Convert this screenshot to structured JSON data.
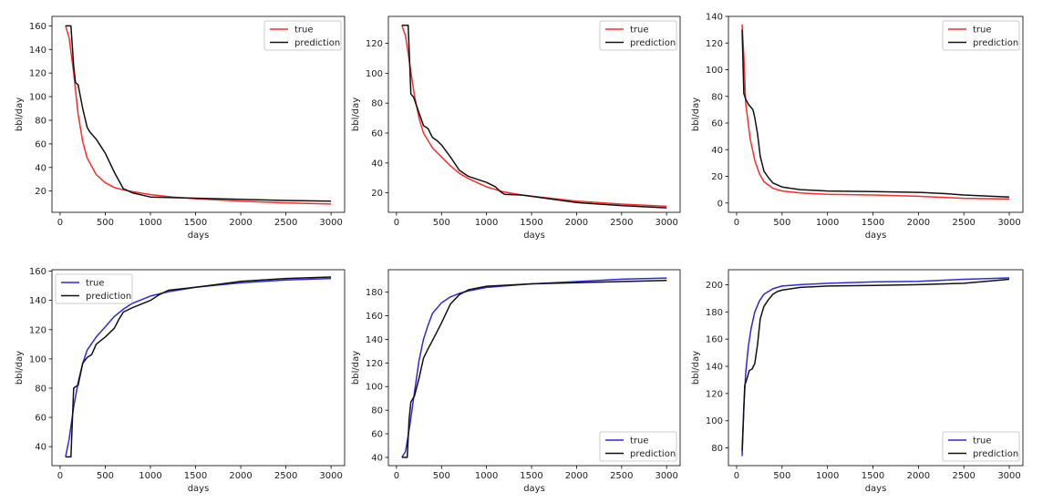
{
  "colors": {
    "true_top": "#ff2b2b",
    "true_bottom": "#2b2bdc",
    "prediction": "#111111"
  },
  "chart_data": [
    {
      "type": "line",
      "xlabel": "days",
      "ylabel": "bbl/day",
      "legend": "top-right",
      "xlim": [
        -90,
        3150
      ],
      "ylim": [
        2,
        168
      ],
      "xticks": [
        0,
        500,
        1000,
        1500,
        2000,
        2500,
        3000
      ],
      "yticks": [
        20,
        40,
        60,
        80,
        100,
        120,
        140,
        160
      ],
      "series": [
        {
          "name": "true",
          "color_key": "true_top",
          "x": [
            60,
            100,
            150,
            200,
            250,
            300,
            400,
            500,
            600,
            700,
            800,
            1000,
            1250,
            1500,
            2000,
            2500,
            3000
          ],
          "y": [
            160,
            150,
            120,
            85,
            62,
            48,
            34,
            27,
            23,
            21,
            19.5,
            17,
            15,
            13.5,
            11.5,
            10,
            9
          ]
        },
        {
          "name": "prediction",
          "color_key": "prediction",
          "x": [
            60,
            120,
            150,
            170,
            200,
            250,
            300,
            330,
            400,
            500,
            600,
            700,
            800,
            1000,
            1500,
            2000,
            2500,
            3000
          ],
          "y": [
            160,
            160,
            126,
            112,
            110,
            90,
            74,
            70,
            64,
            52,
            36,
            22,
            18.5,
            15,
            14,
            13,
            12,
            11.5
          ]
        }
      ]
    },
    {
      "type": "line",
      "xlabel": "days",
      "ylabel": "bbl/day",
      "legend": "top-right",
      "xlim": [
        -90,
        3150
      ],
      "ylim": [
        7,
        138
      ],
      "xticks": [
        0,
        500,
        1000,
        1500,
        2000,
        2500,
        3000
      ],
      "yticks": [
        20,
        40,
        60,
        80,
        100,
        120
      ],
      "series": [
        {
          "name": "true",
          "color_key": "true_top",
          "x": [
            60,
            100,
            150,
            200,
            250,
            300,
            400,
            500,
            600,
            700,
            800,
            1000,
            1200,
            1400,
            2000,
            2500,
            3000
          ],
          "y": [
            132,
            125,
            105,
            85,
            70,
            60,
            50,
            44,
            38,
            33,
            29.5,
            24,
            20.5,
            18.5,
            14.5,
            12.5,
            11
          ]
        },
        {
          "name": "prediction",
          "color_key": "prediction",
          "x": [
            60,
            130,
            160,
            190,
            230,
            300,
            350,
            400,
            450,
            500,
            600,
            700,
            800,
            1000,
            1100,
            1150,
            1200,
            1400,
            2000,
            2500,
            3000
          ],
          "y": [
            132,
            132,
            86,
            84,
            77,
            65,
            63,
            57,
            55,
            52,
            44,
            35,
            31,
            27,
            24,
            21,
            19,
            18.5,
            13.5,
            11.5,
            10
          ]
        }
      ]
    },
    {
      "type": "line",
      "xlabel": "days",
      "ylabel": "bbl/day",
      "legend": "top-right",
      "xlim": [
        -90,
        3150
      ],
      "ylim": [
        -7,
        140
      ],
      "xticks": [
        0,
        500,
        1000,
        1500,
        2000,
        2500,
        3000
      ],
      "yticks": [
        0,
        20,
        40,
        60,
        80,
        100,
        120,
        140
      ],
      "series": [
        {
          "name": "true",
          "color_key": "true_top",
          "x": [
            60,
            80,
            100,
            150,
            200,
            250,
            300,
            400,
            500,
            700,
            1000,
            1500,
            2000,
            2500,
            3000
          ],
          "y": [
            134,
            110,
            75,
            48,
            32,
            22,
            16,
            11,
            9,
            7.5,
            6.5,
            6,
            5,
            3.5,
            3
          ]
        },
        {
          "name": "prediction",
          "color_key": "prediction",
          "x": [
            60,
            80,
            100,
            130,
            180,
            200,
            230,
            260,
            300,
            350,
            400,
            500,
            700,
            1000,
            1500,
            2000,
            2300,
            2500,
            3000
          ],
          "y": [
            130,
            82,
            78,
            74,
            70,
            64,
            52,
            35,
            24,
            19,
            15,
            12,
            10,
            9,
            8.5,
            8,
            7,
            6,
            4.5
          ]
        }
      ]
    },
    {
      "type": "line",
      "xlabel": "days",
      "ylabel": "bbl/day",
      "legend": "top-left",
      "xlim": [
        -90,
        3150
      ],
      "ylim": [
        27,
        161
      ],
      "xticks": [
        0,
        500,
        1000,
        1500,
        2000,
        2500,
        3000
      ],
      "yticks": [
        40,
        60,
        80,
        100,
        120,
        140,
        160
      ],
      "series": [
        {
          "name": "true",
          "color_key": "true_bottom",
          "x": [
            60,
            100,
            150,
            200,
            250,
            300,
            400,
            500,
            600,
            700,
            800,
            1000,
            1200,
            1500,
            2000,
            2500,
            3000
          ],
          "y": [
            33,
            45,
            67,
            84,
            97,
            106,
            115,
            122,
            129,
            134,
            138,
            143,
            146,
            149,
            152,
            154,
            155
          ]
        },
        {
          "name": "prediction",
          "color_key": "prediction",
          "x": [
            60,
            120,
            150,
            170,
            200,
            250,
            300,
            350,
            400,
            500,
            600,
            650,
            700,
            800,
            1000,
            1100,
            1200,
            1500,
            2000,
            2500,
            3000
          ],
          "y": [
            33,
            33,
            80,
            81,
            82,
            97,
            101,
            103,
            110,
            115,
            121,
            127,
            132,
            135,
            140,
            144,
            147,
            149,
            153,
            155,
            156
          ]
        }
      ]
    },
    {
      "type": "line",
      "xlabel": "days",
      "ylabel": "bbl/day",
      "legend": "bottom-right",
      "xlim": [
        -90,
        3150
      ],
      "ylim": [
        33,
        199
      ],
      "xticks": [
        0,
        500,
        1000,
        1500,
        2000,
        2500,
        3000
      ],
      "yticks": [
        40,
        60,
        80,
        100,
        120,
        140,
        160,
        180
      ],
      "series": [
        {
          "name": "true",
          "color_key": "true_bottom",
          "x": [
            60,
            100,
            150,
            200,
            250,
            300,
            350,
            400,
            500,
            600,
            700,
            800,
            1000,
            1500,
            2000,
            2500,
            3000
          ],
          "y": [
            40,
            45,
            68,
            95,
            122,
            140,
            152,
            162,
            171,
            176,
            179,
            181,
            184,
            187,
            189,
            191,
            192
          ]
        },
        {
          "name": "prediction",
          "color_key": "prediction",
          "x": [
            60,
            120,
            140,
            160,
            200,
            250,
            300,
            350,
            400,
            500,
            600,
            700,
            800,
            1000,
            1500,
            2000,
            2500,
            3000
          ],
          "y": [
            40,
            40,
            72,
            87,
            92,
            107,
            124,
            132,
            139,
            154,
            170,
            178,
            182,
            185,
            187,
            188,
            189,
            190
          ]
        }
      ]
    },
    {
      "type": "line",
      "xlabel": "days",
      "ylabel": "bbl/day",
      "legend": "bottom-right",
      "xlim": [
        -90,
        3150
      ],
      "ylim": [
        67,
        211
      ],
      "xticks": [
        0,
        500,
        1000,
        1500,
        2000,
        2500,
        3000
      ],
      "yticks": [
        80,
        100,
        120,
        140,
        160,
        180,
        200
      ],
      "series": [
        {
          "name": "true",
          "color_key": "true_bottom",
          "x": [
            60,
            80,
            100,
            130,
            160,
            200,
            250,
            300,
            400,
            500,
            700,
            1000,
            1500,
            2000,
            2500,
            3000
          ],
          "y": [
            74,
            110,
            135,
            155,
            168,
            180,
            188,
            193,
            197,
            199,
            200,
            201,
            202,
            202.5,
            204,
            205
          ]
        },
        {
          "name": "prediction",
          "color_key": "prediction",
          "x": [
            60,
            90,
            110,
            140,
            170,
            200,
            230,
            260,
            300,
            350,
            400,
            450,
            500,
            700,
            1000,
            1500,
            2000,
            2500,
            3000
          ],
          "y": [
            78,
            126,
            130,
            137,
            138,
            142,
            156,
            175,
            184,
            189,
            193,
            195,
            196,
            198,
            199,
            199.5,
            200,
            201,
            204
          ]
        }
      ]
    }
  ]
}
